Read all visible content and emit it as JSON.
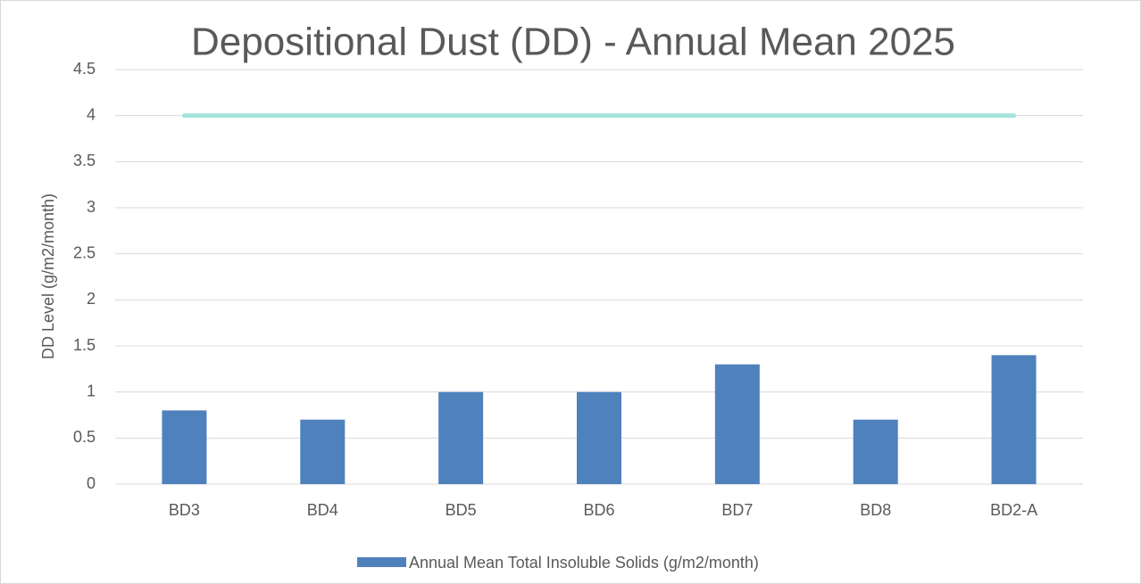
{
  "chart_data": {
    "type": "bar",
    "title": "Depositional Dust (DD) - Annual Mean 2025",
    "y_label": "DD Level (g/m2/month)",
    "categories": [
      "BD3",
      "BD4",
      "BD5",
      "BD6",
      "BD7",
      "BD8",
      "BD2-A"
    ],
    "series": [
      {
        "name": "Annual Mean Total Insoluble Solids (g/m2/month)",
        "color": "#4f81bd",
        "values": [
          0.8,
          0.7,
          1.0,
          1.0,
          1.3,
          0.7,
          1.4
        ]
      },
      {
        "type": "line",
        "color": "#a6e3dc",
        "values": [
          4,
          4,
          4,
          4,
          4,
          4,
          4
        ]
      }
    ],
    "ylim": [
      0,
      4.5
    ],
    "yticks": [
      0,
      0.5,
      1,
      1.5,
      2,
      2.5,
      3,
      3.5,
      4,
      4.5
    ],
    "grid": true,
    "legend": "bottom"
  }
}
